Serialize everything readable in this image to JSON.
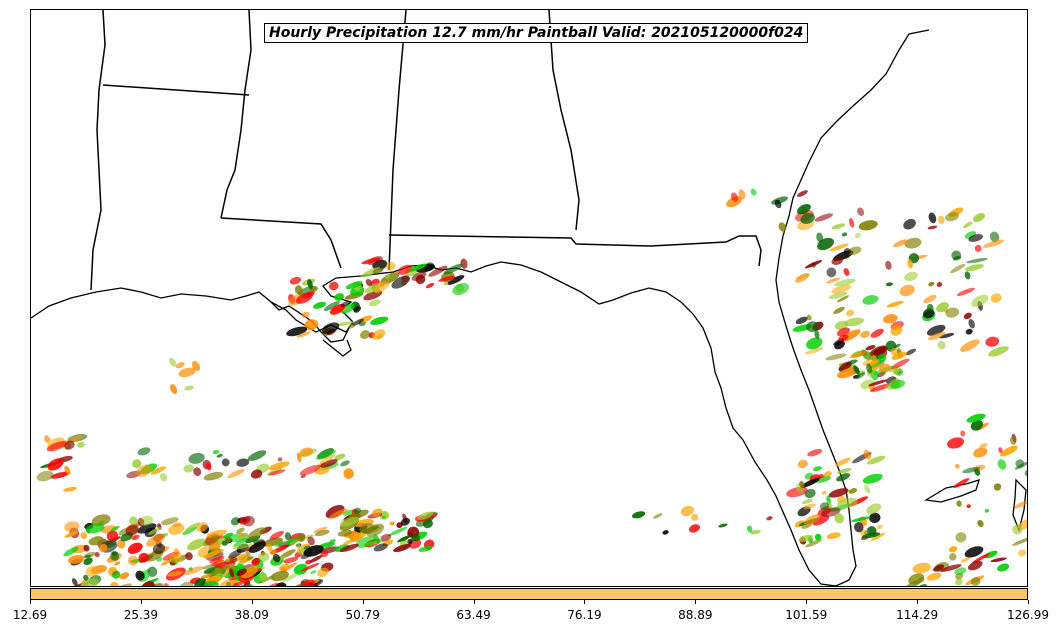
{
  "title": "Hourly Precipitation 12.7 mm/hr Paintball Valid: 202105120000f024",
  "colorbar": {
    "color": "#ffc466",
    "ticks": [
      "12.69",
      "25.39",
      "38.09",
      "50.79",
      "63.49",
      "76.19",
      "88.89",
      "101.59",
      "114.29",
      "126.99"
    ]
  },
  "member_colors": [
    "#8b0000",
    "#ff0000",
    "#ff8c00",
    "#ffa500",
    "#00cc00",
    "#006400",
    "#808000",
    "#9acd32",
    "#000000"
  ]
}
